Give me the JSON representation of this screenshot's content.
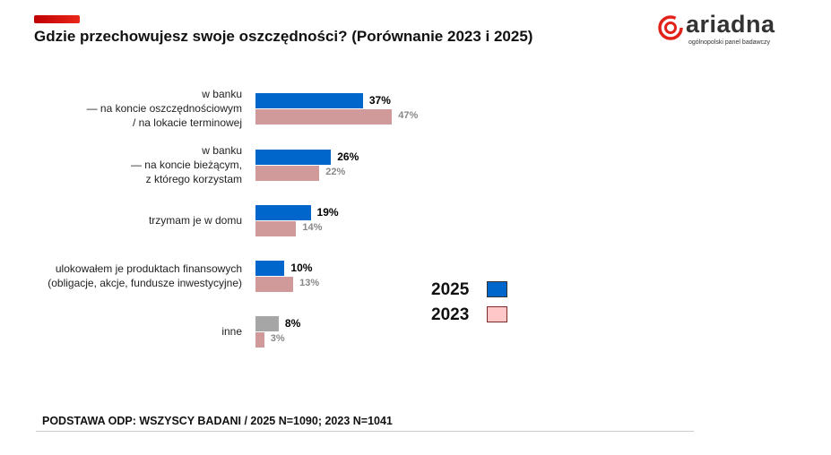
{
  "title": "Gdzie przechowujesz swoje oszczędności? (Porównanie 2023 i 2025)",
  "logo": {
    "word": "ariadna",
    "sub": "ogólnopolski panel badawczy"
  },
  "footer": "PODSTAWA ODP: WSZYSCY BADANI / 2025 N=1090; 2023 N=1041",
  "chart_data": {
    "type": "bar",
    "orientation": "horizontal",
    "categories": [
      [
        "w banku",
        "— na koncie oszczędnościowym",
        "/ na lokacie terminowej"
      ],
      [
        "w banku",
        "— na koncie bieżącym,",
        "z którego korzystam"
      ],
      [
        "trzymam je w domu"
      ],
      [
        "ulokowałem je produktach finansowych",
        "(obligacje, akcje, fundusze inwestycyjne)"
      ],
      [
        "inne"
      ]
    ],
    "series": [
      {
        "name": "2025",
        "values": [
          37,
          26,
          19,
          10,
          8
        ],
        "labels": [
          "37%",
          "26%",
          "19%",
          "10%",
          "8%"
        ],
        "color": "#0066cc",
        "special_colors": {
          "4": "#a6a6a6"
        }
      },
      {
        "name": "2023",
        "values": [
          47,
          22,
          14,
          13,
          3
        ],
        "labels": [
          "47%",
          "22%",
          "14%",
          "13%",
          "3%"
        ],
        "color": "#d09a9a"
      }
    ],
    "legend_colors": {
      "2025": "#0066cc",
      "2023": "#ffc7c7"
    },
    "legend_position": "right",
    "grid": false,
    "xlim": [
      0,
      50
    ]
  }
}
